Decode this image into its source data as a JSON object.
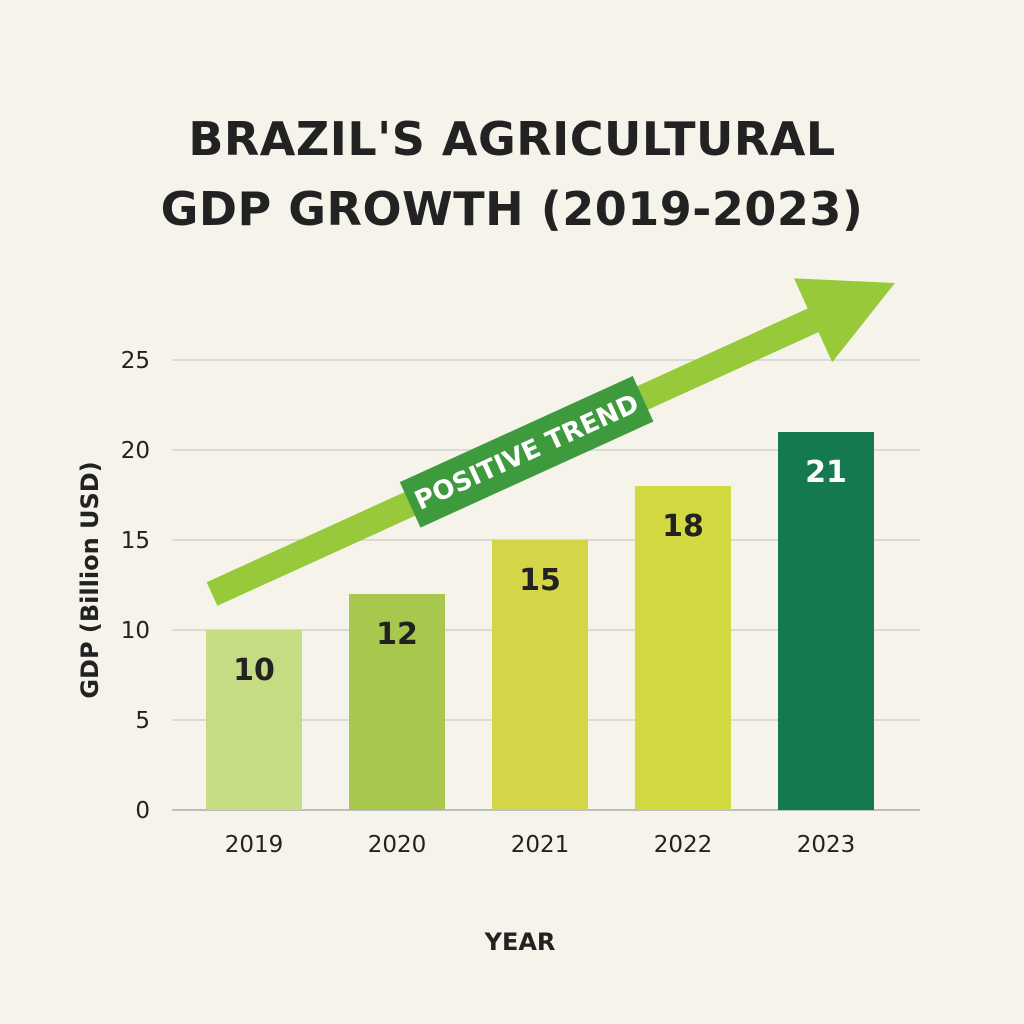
{
  "chart_data": {
    "type": "bar",
    "title_lines": [
      "BRAZIL'S AGRICULTURAL",
      "GDP GROWTH (2019-2023)"
    ],
    "xlabel": "YEAR",
    "ylabel": "GDP (Billion USD)",
    "categories": [
      "2019",
      "2020",
      "2021",
      "2022",
      "2023"
    ],
    "values": [
      10,
      12,
      15,
      18,
      21
    ],
    "data_labels": [
      "10",
      "12",
      "15",
      "18",
      "21"
    ],
    "yticks": [
      0,
      5,
      10,
      15,
      20,
      25
    ],
    "ylim": [
      0,
      25
    ],
    "grid": true,
    "bar_colors": [
      "#c5dc82",
      "#a8c74d",
      "#d4d647",
      "#d3d940",
      "#15794f"
    ],
    "label_colors": [
      "#222222",
      "#222222",
      "#222222",
      "#222222",
      "#ffffff"
    ],
    "annotation": {
      "text": "POSITIVE TREND",
      "arrow_color": "#97c93a",
      "box_color": "#3d9a3d"
    }
  }
}
